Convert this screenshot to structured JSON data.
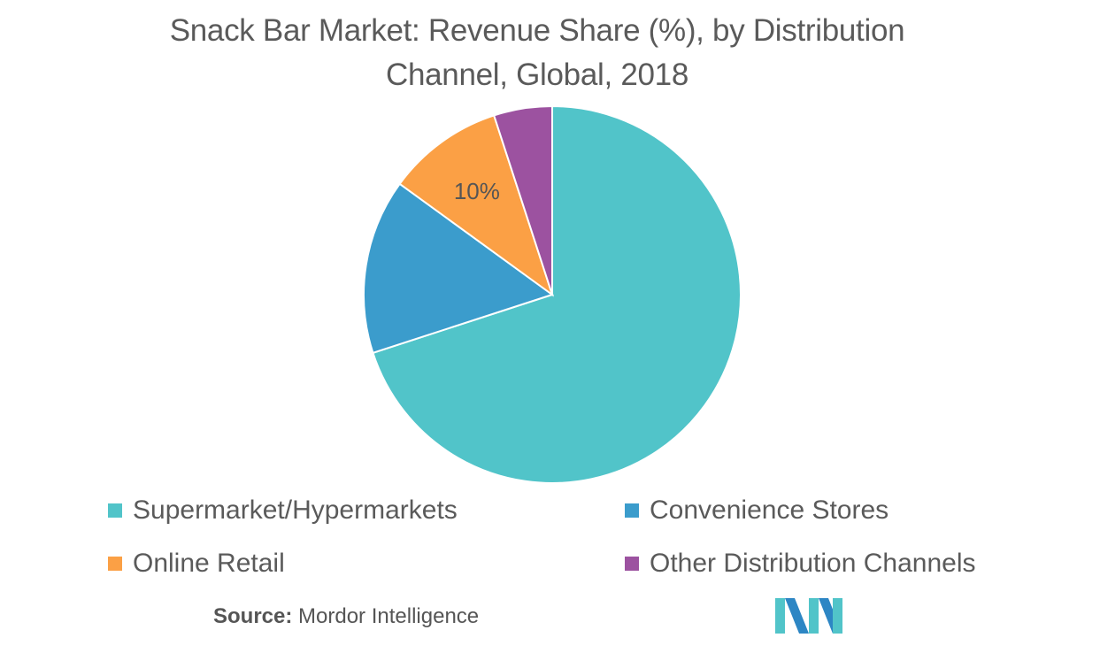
{
  "title_line1": "Snack Bar Market: Revenue Share (%), by Distribution",
  "title_line2": "Channel, Global, 2018",
  "source_label": "Source:",
  "source_text": "Mordor Intelligence",
  "colors": {
    "supermarket": "#51c4c9",
    "convenience": "#3b9ccc",
    "online": "#fba045",
    "other": "#9c52a0",
    "text": "#5a5a5a",
    "logo_teal": "#51c4c9",
    "logo_blue": "#2d86c4"
  },
  "chart_data": {
    "type": "pie",
    "title": "Snack Bar Market: Revenue Share (%), by Distribution Channel, Global, 2018",
    "categories": [
      "Supermarket/Hypermarkets",
      "Convenience Stores",
      "Online Retail",
      "Other Distribution Channels"
    ],
    "values": [
      70,
      15,
      10,
      5
    ],
    "unit": "%",
    "start_angle_deg": 0,
    "direction": "clockwise",
    "data_labels": [
      {
        "category": "Online Retail",
        "text": "10%"
      }
    ],
    "legend_position": "bottom"
  }
}
